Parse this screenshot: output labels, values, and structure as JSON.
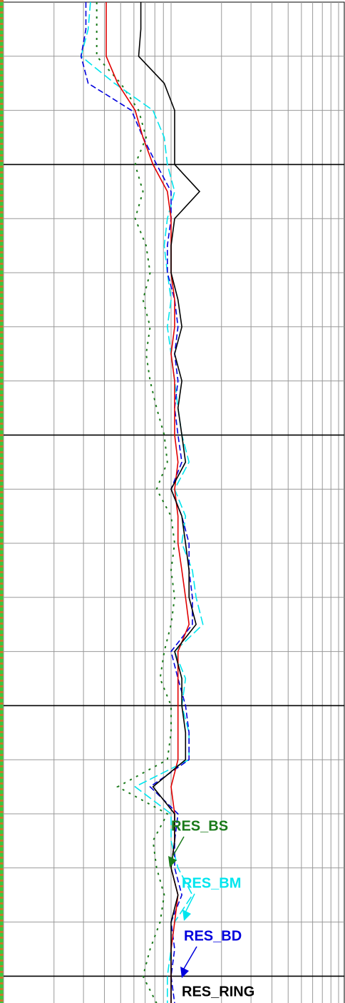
{
  "chart_data": {
    "type": "line",
    "xscale": "log",
    "xlim": [
      1,
      100
    ],
    "xticks": [
      1,
      2,
      3,
      4,
      5,
      6,
      7,
      8,
      9,
      10,
      20,
      30,
      40,
      50,
      60,
      70,
      80,
      90,
      100
    ],
    "ylim": [
      2,
      20.5
    ],
    "yticks": [
      3,
      4,
      5,
      6,
      7,
      8,
      9,
      10,
      11,
      12,
      13,
      14,
      15,
      16,
      17,
      18,
      19,
      20
    ],
    "y_major_ticks": [
      5,
      10,
      15,
      20
    ],
    "grid": true,
    "y": [
      2,
      2.5,
      3,
      3.5,
      4,
      4.5,
      5,
      5.5,
      6,
      6.5,
      7,
      7.5,
      8,
      8.5,
      9,
      9.5,
      10,
      10.5,
      11,
      11.5,
      12,
      12.5,
      13,
      13.5,
      14,
      14.5,
      15,
      15.5,
      16,
      16.5,
      17,
      17.5,
      18,
      18.5,
      19,
      19.5,
      20,
      20.5
    ],
    "series": [
      {
        "name": "RES_RING",
        "color": "#000000",
        "dash": "none",
        "values": [
          6.6,
          6.6,
          6.4,
          9.1,
          10.5,
          10.5,
          10.5,
          14.8,
          10.5,
          10,
          10,
          11,
          11.6,
          10.5,
          11.6,
          11,
          11.6,
          12.2,
          10,
          11.6,
          12.2,
          12.8,
          12.8,
          14.1,
          10.5,
          11.6,
          11.6,
          12.2,
          12.2,
          7.8,
          10.5,
          10.5,
          10,
          11,
          10,
          10,
          10,
          10
        ]
      },
      {
        "color": "#e00000",
        "dash": "none",
        "values": [
          4.1,
          4.1,
          4.1,
          4.8,
          6.1,
          6.8,
          7.8,
          9.5,
          10,
          10,
          10,
          10.5,
          10.5,
          10,
          10.5,
          10.5,
          10.5,
          11,
          10.5,
          11,
          11,
          11.6,
          12.2,
          12.8,
          11,
          11,
          11,
          11,
          11,
          10,
          10.5,
          10.5,
          10,
          11,
          10.5,
          10,
          10,
          10
        ]
      },
      {
        "name": "RES_BD",
        "color": "#0000dd",
        "dash": "8,4",
        "values": [
          3.1,
          3.1,
          2.9,
          3.2,
          5.8,
          6.8,
          8.2,
          10,
          10,
          9.5,
          9.5,
          10.5,
          11,
          10.5,
          11,
          10.5,
          11,
          11.6,
          10,
          11.6,
          12.8,
          12.8,
          13.4,
          13.4,
          10,
          11,
          12.2,
          12.8,
          12.8,
          7.5,
          11,
          10.5,
          10.5,
          11.6,
          10,
          10.5,
          10,
          10.5
        ]
      },
      {
        "name": "RES_BM",
        "color": "#00e5ee",
        "dash": "12,5",
        "values": [
          3.3,
          3.2,
          2.9,
          4.6,
          7.8,
          9.1,
          9.5,
          10.5,
          9.5,
          9.1,
          9.5,
          10,
          9.5,
          10,
          10.5,
          11,
          11.6,
          12.8,
          10.5,
          12.2,
          11.6,
          13.4,
          14.1,
          15.5,
          10.5,
          12.2,
          11.6,
          12.8,
          12.8,
          6.1,
          10,
          10,
          11,
          13.4,
          10.5,
          10,
          9.5,
          9.5
        ]
      },
      {
        "name": "RES_BS",
        "color": "#1a7a1a",
        "dash": "3,7",
        "values": [
          3.6,
          3.6,
          3.6,
          5,
          6.4,
          7.1,
          6.1,
          6.8,
          6.1,
          7.1,
          7.5,
          6.8,
          7.5,
          7.1,
          7.5,
          8.2,
          9.1,
          9.5,
          8.2,
          10,
          10.5,
          10,
          10.5,
          10,
          9.1,
          8.6,
          10,
          10,
          9.5,
          4.8,
          9.5,
          7.8,
          8.2,
          9.1,
          8.6,
          7.5,
          6.8,
          8.2
        ]
      }
    ],
    "annotations": [
      {
        "text": "RES_BS",
        "color": "#1a7a1a"
      },
      {
        "text": "RES_BM",
        "color": "#00e5ee"
      },
      {
        "text": "RES_BD",
        "color": "#0000dd"
      },
      {
        "text": "RES_RING",
        "color": "#000000"
      }
    ]
  }
}
